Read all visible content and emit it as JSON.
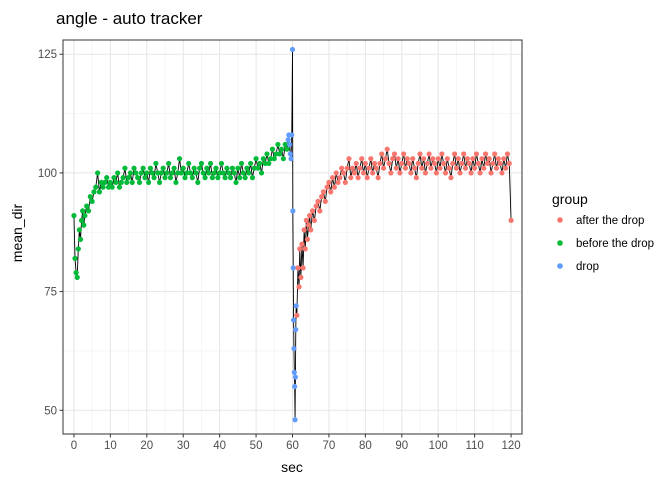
{
  "chart_data": {
    "type": "scatter",
    "title": "angle - auto tracker",
    "xlabel": "sec",
    "ylabel": "mean_dir",
    "xlim": [
      -3,
      123
    ],
    "ylim": [
      45,
      128
    ],
    "x_ticks": [
      0,
      10,
      20,
      30,
      40,
      50,
      60,
      70,
      80,
      90,
      100,
      110,
      120
    ],
    "x_tick_labels": [
      "0",
      "10",
      "20",
      "30",
      "40",
      "50",
      "60",
      "70",
      "80",
      "90",
      "100",
      "110",
      "120"
    ],
    "y_ticks": [
      50,
      75,
      100,
      125
    ],
    "y_tick_labels": [
      "50",
      "75",
      "100",
      "125"
    ],
    "grid": true,
    "connecting_line": true,
    "legend": {
      "title": "group",
      "position": "right",
      "entries": [
        {
          "label": "after the drop",
          "color": "#F8766D"
        },
        {
          "label": "before the drop",
          "color": "#00BA38"
        },
        {
          "label": "drop",
          "color": "#619CFF"
        }
      ]
    },
    "series": [
      {
        "name": "before the drop",
        "color": "#00BA38",
        "points": [
          [
            0,
            91
          ],
          [
            0.3,
            82
          ],
          [
            0.6,
            79
          ],
          [
            0.9,
            78
          ],
          [
            1.2,
            84
          ],
          [
            1.5,
            88
          ],
          [
            1.8,
            86
          ],
          [
            2.1,
            90
          ],
          [
            2.4,
            92
          ],
          [
            2.7,
            89
          ],
          [
            3,
            91
          ],
          [
            3.5,
            93
          ],
          [
            4,
            92
          ],
          [
            4.5,
            95
          ],
          [
            5,
            94
          ],
          [
            5.5,
            96
          ],
          [
            6,
            97
          ],
          [
            6.5,
            100
          ],
          [
            7,
            96
          ],
          [
            7.5,
            98
          ],
          [
            8,
            97
          ],
          [
            8.5,
            98
          ],
          [
            9,
            99
          ],
          [
            9.5,
            97
          ],
          [
            10,
            98
          ],
          [
            10.5,
            97
          ],
          [
            11,
            99
          ],
          [
            11.5,
            98
          ],
          [
            12,
            100
          ],
          [
            12.5,
            97
          ],
          [
            13,
            98
          ],
          [
            13.5,
            99
          ],
          [
            14,
            101
          ],
          [
            14.5,
            98
          ],
          [
            15,
            99
          ],
          [
            15.5,
            100
          ],
          [
            16,
            98
          ],
          [
            16.5,
            101
          ],
          [
            17,
            100
          ],
          [
            17.5,
            99
          ],
          [
            18,
            98
          ],
          [
            18.5,
            100
          ],
          [
            19,
            101
          ],
          [
            19.5,
            99
          ],
          [
            20,
            100
          ],
          [
            20.5,
            98
          ],
          [
            21,
            101
          ],
          [
            21.5,
            100
          ],
          [
            22,
            99
          ],
          [
            22.5,
            102
          ],
          [
            23,
            100
          ],
          [
            23.5,
            98
          ],
          [
            24,
            100
          ],
          [
            24.5,
            101
          ],
          [
            25,
            99
          ],
          [
            25.5,
            100
          ],
          [
            26,
            102
          ],
          [
            26.5,
            99
          ],
          [
            27,
            100
          ],
          [
            27.5,
            101
          ],
          [
            28,
            98
          ],
          [
            28.5,
            100
          ],
          [
            29,
            103
          ],
          [
            29.5,
            100
          ],
          [
            30,
            101
          ],
          [
            30.5,
            99
          ],
          [
            31,
            100
          ],
          [
            31.5,
            102
          ],
          [
            32,
            100
          ],
          [
            32.5,
            99
          ],
          [
            33,
            101
          ],
          [
            33.5,
            100
          ],
          [
            34,
            98
          ],
          [
            34.5,
            101
          ],
          [
            35,
            102
          ],
          [
            35.5,
            100
          ],
          [
            36,
            99
          ],
          [
            36.5,
            101
          ],
          [
            37,
            100
          ],
          [
            37.5,
            102
          ],
          [
            38,
            99
          ],
          [
            38.5,
            100
          ],
          [
            39,
            101
          ],
          [
            39.5,
            99
          ],
          [
            40,
            100
          ],
          [
            40.5,
            102
          ],
          [
            41,
            100
          ],
          [
            41.5,
            99
          ],
          [
            42,
            101
          ],
          [
            42.5,
            100
          ],
          [
            43,
            99
          ],
          [
            43.5,
            101
          ],
          [
            44,
            100
          ],
          [
            44.5,
            98
          ],
          [
            45,
            101
          ],
          [
            45.5,
            99
          ],
          [
            46,
            102
          ],
          [
            46.5,
            100
          ],
          [
            47,
            99
          ],
          [
            47.5,
            101
          ],
          [
            48,
            100
          ],
          [
            48.5,
            102
          ],
          [
            49,
            99
          ],
          [
            49.5,
            101
          ],
          [
            50,
            103
          ],
          [
            50.5,
            101
          ],
          [
            51,
            102
          ],
          [
            51.5,
            100
          ],
          [
            52,
            103
          ],
          [
            52.5,
            102
          ],
          [
            53,
            104
          ],
          [
            53.5,
            102
          ],
          [
            54,
            103
          ],
          [
            54.5,
            105
          ],
          [
            55,
            103
          ],
          [
            55.5,
            104
          ],
          [
            56,
            106
          ],
          [
            56.5,
            104
          ],
          [
            57,
            105
          ],
          [
            57.5,
            103
          ],
          [
            58,
            106
          ],
          [
            58.5,
            105
          ]
        ]
      },
      {
        "name": "drop",
        "color": "#619CFF",
        "points": [
          [
            58.8,
            107
          ],
          [
            59,
            108
          ],
          [
            59.2,
            106
          ],
          [
            59.4,
            104
          ],
          [
            59.6,
            103
          ],
          [
            59.8,
            108
          ],
          [
            60,
            126
          ],
          [
            60.1,
            92
          ],
          [
            60.2,
            80
          ],
          [
            60.3,
            69
          ],
          [
            60.4,
            63
          ],
          [
            60.5,
            58
          ],
          [
            60.6,
            55
          ],
          [
            60.7,
            48
          ],
          [
            60.8,
            57
          ],
          [
            60.9,
            67
          ],
          [
            61,
            72
          ]
        ]
      },
      {
        "name": "after the drop",
        "color": "#F8766D",
        "points": [
          [
            61.2,
            70
          ],
          [
            61.5,
            80
          ],
          [
            61.8,
            76
          ],
          [
            62,
            84
          ],
          [
            62.3,
            78
          ],
          [
            62.6,
            85
          ],
          [
            62.9,
            80
          ],
          [
            63.2,
            88
          ],
          [
            63.5,
            84
          ],
          [
            63.8,
            90
          ],
          [
            64.1,
            86
          ],
          [
            64.4,
            89
          ],
          [
            64.7,
            91
          ],
          [
            65,
            88
          ],
          [
            65.5,
            92
          ],
          [
            66,
            90
          ],
          [
            66.5,
            93
          ],
          [
            67,
            94
          ],
          [
            67.5,
            92
          ],
          [
            68,
            95
          ],
          [
            68.5,
            96
          ],
          [
            69,
            94
          ],
          [
            69.5,
            97
          ],
          [
            70,
            98
          ],
          [
            70.5,
            96
          ],
          [
            71,
            99
          ],
          [
            71.5,
            97
          ],
          [
            72,
            100
          ],
          [
            72.5,
            98
          ],
          [
            73,
            99
          ],
          [
            73.5,
            101
          ],
          [
            74,
            100
          ],
          [
            74.5,
            98
          ],
          [
            75,
            101
          ],
          [
            75.5,
            103
          ],
          [
            76,
            99
          ],
          [
            76.5,
            101
          ],
          [
            77,
            100
          ],
          [
            77.5,
            102
          ],
          [
            78,
            99
          ],
          [
            78.5,
            101
          ],
          [
            79,
            103
          ],
          [
            79.5,
            100
          ],
          [
            80,
            102
          ],
          [
            80.5,
            99
          ],
          [
            81,
            101
          ],
          [
            81.5,
            103
          ],
          [
            82,
            100
          ],
          [
            82.5,
            102
          ],
          [
            83,
            101
          ],
          [
            83.5,
            99
          ],
          [
            84,
            102
          ],
          [
            84.5,
            104
          ],
          [
            85,
            101
          ],
          [
            85.5,
            103
          ],
          [
            86,
            105
          ],
          [
            86.5,
            102
          ],
          [
            87,
            100
          ],
          [
            87.5,
            103
          ],
          [
            88,
            104
          ],
          [
            88.5,
            101
          ],
          [
            89,
            103
          ],
          [
            89.5,
            100
          ],
          [
            90,
            102
          ],
          [
            90.5,
            104
          ],
          [
            91,
            101
          ],
          [
            91.5,
            103
          ],
          [
            92,
            102
          ],
          [
            92.5,
            100
          ],
          [
            93,
            103
          ],
          [
            93.5,
            101
          ],
          [
            94,
            99
          ],
          [
            94.5,
            102
          ],
          [
            95,
            104
          ],
          [
            95.5,
            101
          ],
          [
            96,
            103
          ],
          [
            96.5,
            100
          ],
          [
            97,
            102
          ],
          [
            97.5,
            104
          ],
          [
            98,
            101
          ],
          [
            98.5,
            103
          ],
          [
            99,
            102
          ],
          [
            99.5,
            100
          ],
          [
            100,
            103
          ],
          [
            100.5,
            101
          ],
          [
            101,
            104
          ],
          [
            101.5,
            102
          ],
          [
            102,
            100
          ],
          [
            102.5,
            103
          ],
          [
            103,
            101
          ],
          [
            103.5,
            99
          ],
          [
            104,
            102
          ],
          [
            104.5,
            104
          ],
          [
            105,
            101
          ],
          [
            105.5,
            103
          ],
          [
            106,
            100
          ],
          [
            106.5,
            102
          ],
          [
            107,
            104
          ],
          [
            107.5,
            101
          ],
          [
            108,
            103
          ],
          [
            108.5,
            102
          ],
          [
            109,
            100
          ],
          [
            109.5,
            103
          ],
          [
            110,
            101
          ],
          [
            110.5,
            104
          ],
          [
            111,
            102
          ],
          [
            111.5,
            100
          ],
          [
            112,
            103
          ],
          [
            112.5,
            101
          ],
          [
            113,
            104
          ],
          [
            113.5,
            102
          ],
          [
            114,
            103
          ],
          [
            114.5,
            100
          ],
          [
            115,
            102
          ],
          [
            115.5,
            104
          ],
          [
            116,
            101
          ],
          [
            116.5,
            103
          ],
          [
            117,
            102
          ],
          [
            117.5,
            100
          ],
          [
            118,
            103
          ],
          [
            118.5,
            101
          ],
          [
            119,
            104
          ],
          [
            119.5,
            102
          ],
          [
            120,
            90
          ]
        ]
      }
    ]
  }
}
